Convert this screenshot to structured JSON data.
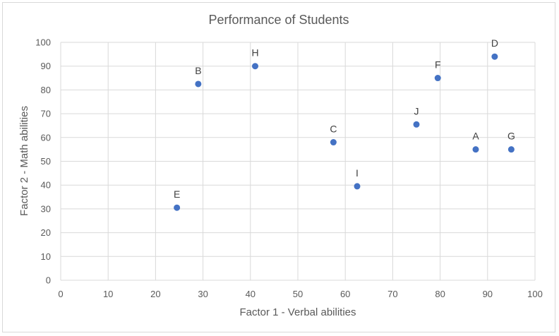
{
  "chart_data": {
    "type": "scatter",
    "title": "Performance of Students",
    "xlabel": "Factor 1 - Verbal abilities",
    "ylabel": "Factor 2 - Math abilities",
    "xlim": [
      0,
      100
    ],
    "ylim": [
      0,
      100
    ],
    "xticks": [
      0,
      10,
      20,
      30,
      40,
      50,
      60,
      70,
      80,
      90,
      100
    ],
    "yticks": [
      0,
      10,
      20,
      30,
      40,
      50,
      60,
      70,
      80,
      90,
      100
    ],
    "grid": true,
    "marker_color": "#4472c4",
    "series": [
      {
        "points": [
          {
            "label": "A",
            "x": 87.5,
            "y": 55
          },
          {
            "label": "B",
            "x": 29,
            "y": 82.5
          },
          {
            "label": "C",
            "x": 57.5,
            "y": 58
          },
          {
            "label": "D",
            "x": 91.5,
            "y": 94
          },
          {
            "label": "E",
            "x": 24.5,
            "y": 30.5
          },
          {
            "label": "F",
            "x": 79.5,
            "y": 85
          },
          {
            "label": "G",
            "x": 95,
            "y": 55
          },
          {
            "label": "H",
            "x": 41,
            "y": 90
          },
          {
            "label": "I",
            "x": 62.5,
            "y": 39.5
          },
          {
            "label": "J",
            "x": 75,
            "y": 65.5
          }
        ]
      }
    ]
  }
}
